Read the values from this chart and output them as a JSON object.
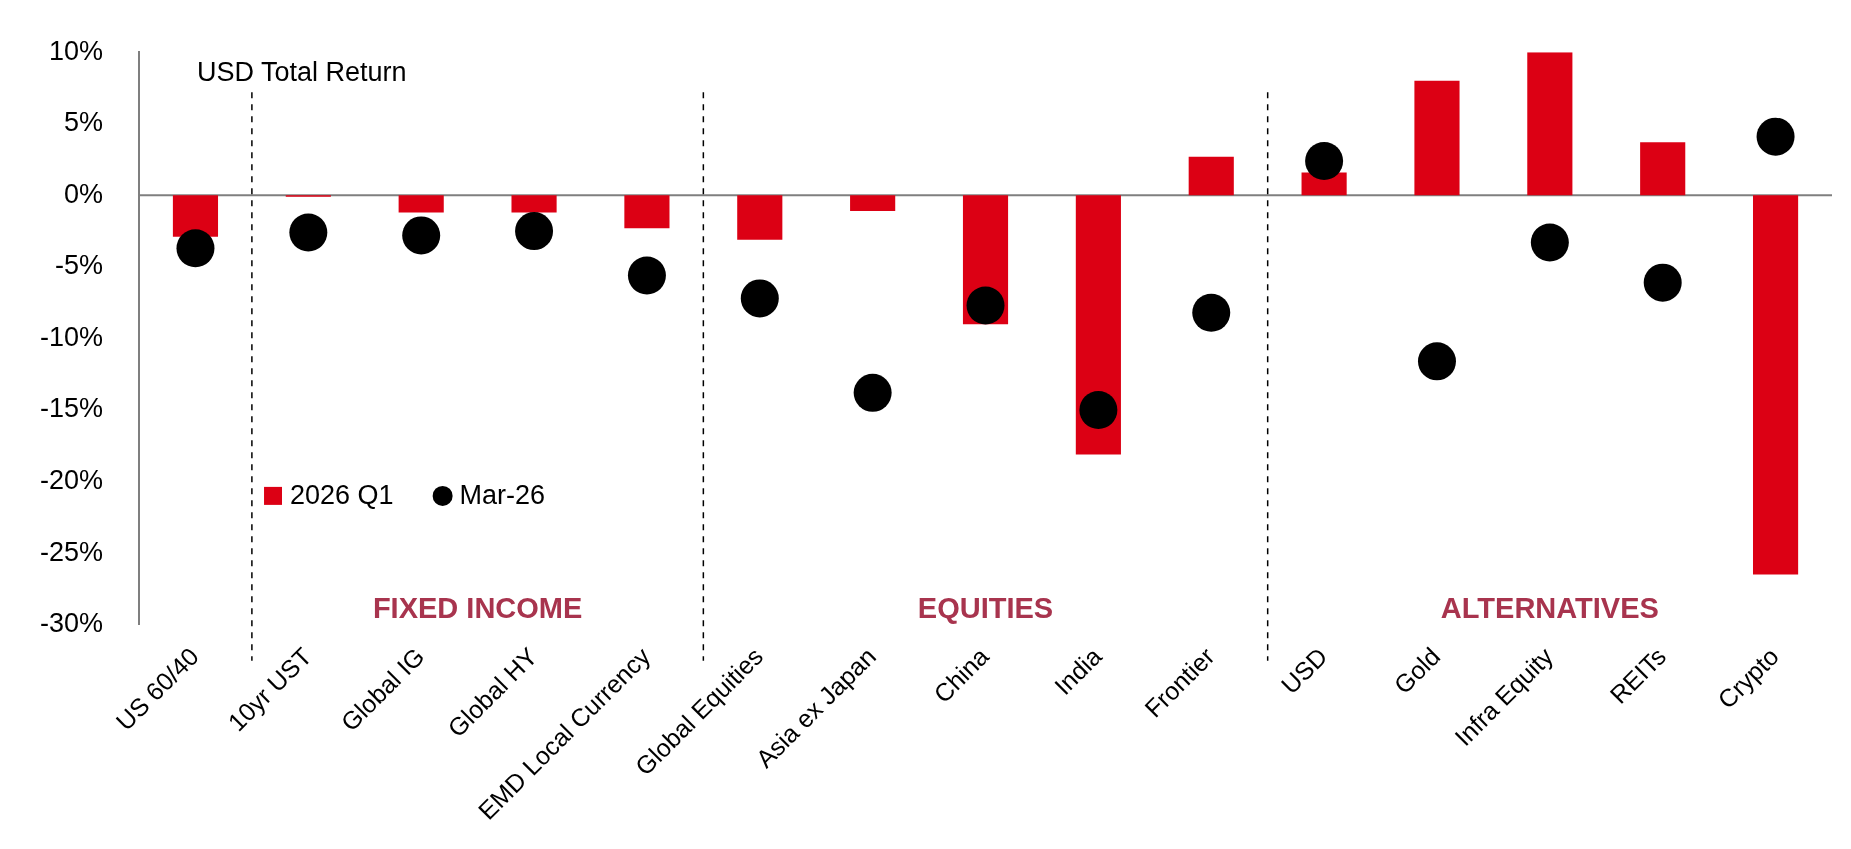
{
  "chart_data": {
    "type": "bar",
    "categories": [
      "US 60/40",
      "10yr UST",
      "Global IG",
      "Global HY",
      "EMD Local Currency",
      "Global Equities",
      "Asia ex Japan",
      "China",
      "India",
      "Frontier",
      "USD",
      "Gold",
      "Infra Equity",
      "REITs",
      "Crypto"
    ],
    "series": [
      {
        "name": "2026 Q1",
        "color": "#dc0014",
        "values": [
          -2.9,
          -0.1,
          -1.2,
          -1.2,
          -2.3,
          -3.1,
          -1.1,
          -9.0,
          -18.1,
          2.7,
          1.6,
          8.0,
          10.0,
          3.7,
          -26.5
        ]
      },
      {
        "name": "Mar-26",
        "type": "scatter",
        "color": "#000000",
        "values": [
          -3.7,
          -2.6,
          -2.8,
          -2.5,
          -5.6,
          -7.2,
          -13.8,
          -7.7,
          -15.0,
          -8.2,
          2.4,
          -11.6,
          -3.3,
          -6.1,
          4.1
        ]
      }
    ],
    "ylim": [
      -30,
      10
    ],
    "yticks": [
      {
        "value": -30,
        "label": "-30%"
      },
      {
        "value": -25,
        "label": "-25%"
      },
      {
        "value": -20,
        "label": "-20%"
      },
      {
        "value": -15,
        "label": "-15%"
      },
      {
        "value": -10,
        "label": "-10%"
      },
      {
        "value": -5,
        "label": "-5%"
      },
      {
        "value": 0,
        "label": "0%"
      },
      {
        "value": 5,
        "label": "5%"
      },
      {
        "value": 10,
        "label": "10%"
      }
    ],
    "annotations": [
      "USD Total Return",
      "FIXED INCOME",
      "EQUITIES",
      "ALTERNATIVES"
    ],
    "legend": "bottom left",
    "marker": "circle",
    "grid": false
  }
}
